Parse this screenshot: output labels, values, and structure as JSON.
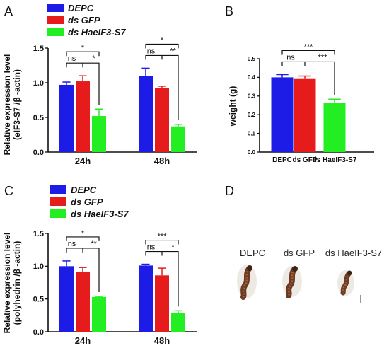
{
  "panel_labels": [
    "A",
    "B",
    "C",
    "D"
  ],
  "colors": {
    "DEPC": "#1c1ce6",
    "ds GFP": "#e61c1c",
    "ds HaeIF3-S7": "#22ee22",
    "axis": "#111111"
  },
  "legend_A": [
    "DEPC",
    "ds GFP",
    "ds HaeIF3-S7"
  ],
  "legend_C": [
    "DEPC",
    "ds GFP",
    "ds HaeIF3-S7"
  ],
  "chart_data": [
    {
      "panel": "A",
      "type": "bar",
      "categories": [
        "24h",
        "48h"
      ],
      "series": [
        {
          "name": "DEPC",
          "values": [
            0.97,
            1.1
          ],
          "errors": [
            0.04,
            0.11
          ]
        },
        {
          "name": "ds GFP",
          "values": [
            1.02,
            0.92
          ],
          "errors": [
            0.08,
            0.03
          ]
        },
        {
          "name": "ds HaeIF3-S7",
          "values": [
            0.52,
            0.37
          ],
          "errors": [
            0.1,
            0.03
          ]
        }
      ],
      "ylabel": [
        "Relative expression level",
        "(eIF3-S7 /β -actin)"
      ],
      "ylim": [
        0,
        1.5
      ],
      "yticks": [
        "0.0",
        "0.5",
        "1.0",
        "1.5"
      ],
      "significance": [
        {
          "group": "24h",
          "pair": [
            "DEPC",
            "ds HaeIF3-S7"
          ],
          "label": "*"
        },
        {
          "group": "24h",
          "pair": [
            "DEPC",
            "ds GFP"
          ],
          "label": "ns"
        },
        {
          "group": "24h",
          "pair": [
            "ds GFP",
            "ds HaeIF3-S7"
          ],
          "label": "*"
        },
        {
          "group": "48h",
          "pair": [
            "DEPC",
            "ds HaeIF3-S7"
          ],
          "label": "*"
        },
        {
          "group": "48h",
          "pair": [
            "DEPC",
            "ds GFP"
          ],
          "label": "ns"
        },
        {
          "group": "48h",
          "pair": [
            "ds GFP",
            "ds HaeIF3-S7"
          ],
          "label": "**"
        }
      ]
    },
    {
      "panel": "B",
      "type": "bar",
      "categories": [
        "DEPC",
        "ds GFP",
        "ds HaeIF3-S7"
      ],
      "values": [
        0.4,
        0.395,
        0.265
      ],
      "errors": [
        0.015,
        0.012,
        0.018
      ],
      "ylabel": "weight (g)",
      "ylim": [
        0,
        0.5
      ],
      "yticks": [
        "0.0",
        "0.1",
        "0.2",
        "0.3",
        "0.4",
        "0.5"
      ],
      "significance": [
        {
          "pair": [
            "DEPC",
            "ds HaeIF3-S7"
          ],
          "label": "***"
        },
        {
          "pair": [
            "DEPC",
            "ds GFP"
          ],
          "label": "ns"
        },
        {
          "pair": [
            "ds GFP",
            "ds HaeIF3-S7"
          ],
          "label": "***"
        }
      ]
    },
    {
      "panel": "C",
      "type": "bar",
      "categories": [
        "24h",
        "48h"
      ],
      "series": [
        {
          "name": "DEPC",
          "values": [
            1.0,
            1.01
          ],
          "errors": [
            0.08,
            0.02
          ]
        },
        {
          "name": "ds GFP",
          "values": [
            0.91,
            0.86
          ],
          "errors": [
            0.07,
            0.11
          ]
        },
        {
          "name": "ds HaeIF3-S7",
          "values": [
            0.53,
            0.29
          ],
          "errors": [
            0.01,
            0.03
          ]
        }
      ],
      "ylabel": [
        "Relative expression level",
        "(polyhedrin /β -actin)"
      ],
      "ylim": [
        0,
        1.5
      ],
      "yticks": [
        "0.0",
        "0.5",
        "1.0",
        "1.5"
      ],
      "significance": [
        {
          "group": "24h",
          "pair": [
            "DEPC",
            "ds HaeIF3-S7"
          ],
          "label": "*"
        },
        {
          "group": "24h",
          "pair": [
            "DEPC",
            "ds GFP"
          ],
          "label": "ns"
        },
        {
          "group": "24h",
          "pair": [
            "ds GFP",
            "ds HaeIF3-S7"
          ],
          "label": "**"
        },
        {
          "group": "48h",
          "pair": [
            "DEPC",
            "ds HaeIF3-S7"
          ],
          "label": "***"
        },
        {
          "group": "48h",
          "pair": [
            "DEPC",
            "ds GFP"
          ],
          "label": "ns"
        },
        {
          "group": "48h",
          "pair": [
            "ds GFP",
            "ds HaeIF3-S7"
          ],
          "label": "*"
        }
      ]
    }
  ],
  "panel_D": {
    "labels": [
      "DEPC",
      "ds GFP",
      "ds HaeIF3-S7"
    ]
  }
}
